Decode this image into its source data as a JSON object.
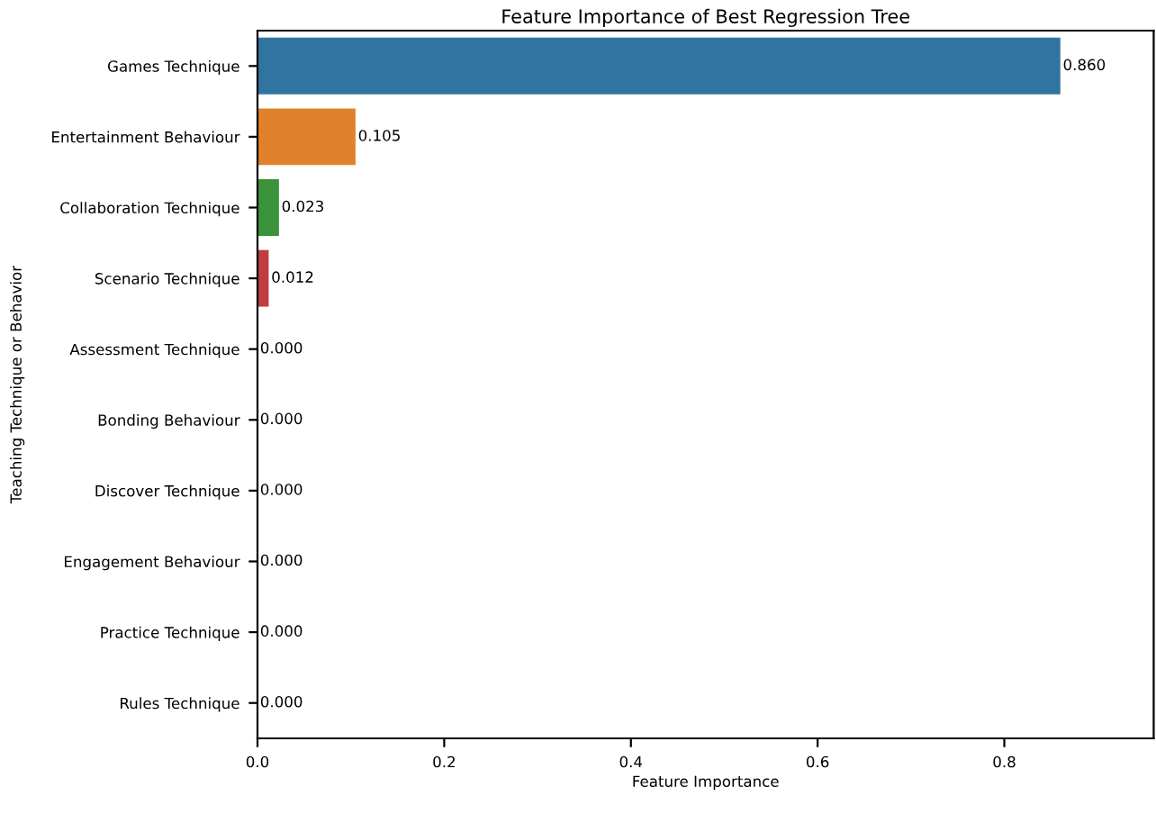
{
  "chart_data": {
    "type": "bar",
    "orientation": "horizontal",
    "title": "Feature Importance of Best Regression Tree",
    "xlabel": "Feature Importance",
    "ylabel": "Teaching Technique or Behavior",
    "categories": [
      "Games Technique",
      "Entertainment Behaviour",
      "Collaboration Technique",
      "Scenario Technique",
      "Assessment Technique",
      "Bonding Behaviour",
      "Discover Technique",
      "Engagement Behaviour",
      "Practice Technique",
      "Rules Technique"
    ],
    "values": [
      0.86,
      0.105,
      0.023,
      0.012,
      0,
      0,
      0,
      0,
      0,
      0
    ],
    "value_labels": [
      "0.860",
      "0.105",
      "0.023",
      "0.012",
      "0.000",
      "0.000",
      "0.000",
      "0.000",
      "0.000",
      "0.000"
    ],
    "colors": [
      "#3274a1",
      "#e1812c",
      "#3a923a",
      "#c03d3e",
      "#9372b2",
      "#845b53",
      "#d684bd",
      "#7f7f7f",
      "#a9aa35",
      "#2eb0c4"
    ],
    "xlim": [
      0,
      0.96
    ],
    "xticks": [
      {
        "value": 0,
        "label": "0.0"
      },
      {
        "value": 0.2,
        "label": "0.2"
      },
      {
        "value": 0.4,
        "label": "0.4"
      },
      {
        "value": 0.6,
        "label": "0.6"
      },
      {
        "value": 0.8,
        "label": "0.8"
      }
    ],
    "grid": false,
    "legend": false
  }
}
